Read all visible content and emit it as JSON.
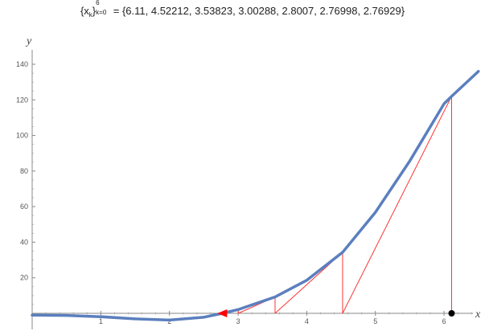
{
  "title": {
    "open": "{x",
    "k_sub": "k",
    "close": "}",
    "upper": "6",
    "lower": "k=0",
    "rest": " = {6.11, 4.52212, 3.53823, 3.00288, 2.8007, 2.76998, 2.76929}"
  },
  "chart_data": {
    "type": "line",
    "xlabel": "x",
    "ylabel": "y",
    "xlim": [
      -0.03,
      6.6
    ],
    "ylim": [
      -10,
      145
    ],
    "x_ticks": [
      1,
      2,
      3,
      4,
      5,
      6
    ],
    "y_ticks": [
      20,
      40,
      60,
      80,
      100,
      120,
      140
    ],
    "series": [
      {
        "kind": "curve",
        "color": "#5b7fbf",
        "x": [
          0,
          0.5,
          1,
          1.5,
          2,
          2.5,
          2.76929,
          3,
          3.53823,
          4,
          4.52212,
          5,
          5.5,
          6,
          6.11,
          6.5
        ],
        "y": [
          -1,
          -1.2,
          -1.9,
          -3.1,
          -3.8,
          -2.2,
          0,
          2.1,
          9.2,
          18.6,
          34.3,
          56.8,
          85.6,
          117.8,
          122,
          136
        ]
      },
      {
        "kind": "newton-iterations",
        "color": "#ff3333",
        "x": [
          6.11,
          4.52212,
          3.53823,
          3.00288,
          2.8007,
          2.76998,
          2.76929
        ],
        "y": [
          122,
          34.3,
          9.2,
          2.2,
          0.3,
          0,
          0
        ]
      }
    ],
    "start_point": {
      "x": 6.11,
      "y": 0,
      "color": "#000000"
    },
    "end_arrow_color": "#ff0000"
  }
}
